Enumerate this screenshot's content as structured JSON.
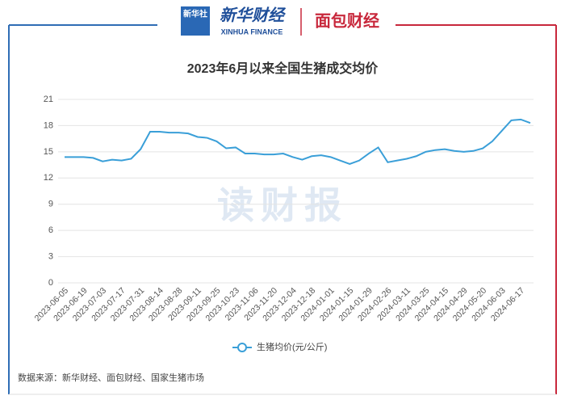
{
  "header": {
    "logo_left": "新华社",
    "brand": "新华财经",
    "brand_en": "XINHUA FINANCE",
    "logo_right": "面包财经"
  },
  "watermark": "读财报",
  "source": "数据来源：新华财经、面包财经、国家生猪市场",
  "chart_data": {
    "type": "line",
    "title": "2023年6月以来全国生猪成交均价",
    "categories": [
      "2023-06-05",
      null,
      "2023-06-19",
      null,
      "2023-07-03",
      null,
      "2023-07-17",
      null,
      "2023-07-31",
      null,
      "2023-08-14",
      null,
      "2023-08-28",
      null,
      "2023-09-11",
      null,
      "2023-09-25",
      null,
      "2023-10-23",
      null,
      "2023-11-06",
      null,
      "2023-11-20",
      null,
      "2023-12-04",
      null,
      "2023-12-18",
      null,
      "2024-01-01",
      null,
      "2024-01-15",
      null,
      "2024-01-29",
      null,
      "2024-02-26",
      null,
      "2024-03-11",
      null,
      "2024-03-25",
      null,
      "2024-04-15",
      null,
      "2024-04-29",
      null,
      "2024-05-20",
      null,
      "2024-06-03",
      null,
      "2024-06-17",
      null
    ],
    "series": [
      {
        "name": "生猪均价(元/公斤)",
        "color": "#3a9fd8",
        "values": [
          14.4,
          14.4,
          14.4,
          14.3,
          13.9,
          14.1,
          14.0,
          14.2,
          15.3,
          17.3,
          17.3,
          17.2,
          17.2,
          17.1,
          16.7,
          16.6,
          16.2,
          15.4,
          15.5,
          14.8,
          14.8,
          14.7,
          14.7,
          14.8,
          14.4,
          14.1,
          14.5,
          14.6,
          14.4,
          14.0,
          13.6,
          14.0,
          14.8,
          15.5,
          13.8,
          14.0,
          14.2,
          14.5,
          15.0,
          15.2,
          15.3,
          15.1,
          15.0,
          15.1,
          15.4,
          16.2,
          17.4,
          18.6,
          18.7,
          18.3
        ]
      }
    ],
    "ylim": [
      0,
      21
    ],
    "yticks": [
      0,
      3,
      6,
      9,
      12,
      15,
      18,
      21
    ],
    "grid": true
  }
}
